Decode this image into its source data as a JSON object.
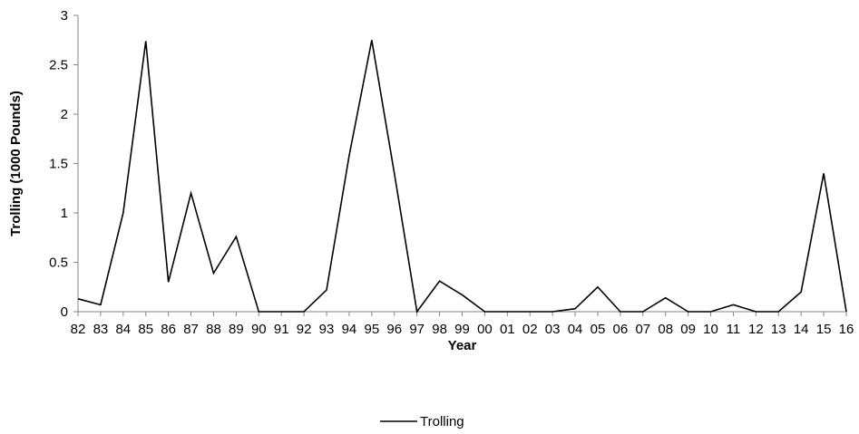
{
  "chart_data": {
    "type": "line",
    "title": "",
    "xlabel": "Year",
    "ylabel": "Trolling (1000 Pounds)",
    "ylim": [
      0,
      3
    ],
    "yticks": [
      "0",
      "0.5",
      "1",
      "1.5",
      "2",
      "2.5",
      "3"
    ],
    "grid": false,
    "legend": "bottom",
    "categories": [
      "82",
      "83",
      "84",
      "85",
      "86",
      "87",
      "88",
      "89",
      "90",
      "91",
      "92",
      "93",
      "94",
      "95",
      "96",
      "97",
      "98",
      "99",
      "00",
      "01",
      "02",
      "03",
      "04",
      "05",
      "06",
      "07",
      "08",
      "09",
      "10",
      "11",
      "12",
      "13",
      "14",
      "15",
      "16"
    ],
    "series": [
      {
        "name": "Trolling",
        "color": "#000000",
        "values": [
          0.13,
          0.07,
          1.0,
          2.74,
          0.3,
          1.2,
          0.39,
          0.76,
          0.0,
          0.0,
          0.0,
          0.22,
          1.58,
          2.75,
          1.4,
          0.0,
          0.31,
          0.17,
          0.0,
          0.0,
          0.0,
          0.0,
          0.03,
          0.25,
          0.0,
          0.0,
          0.14,
          0.0,
          0.0,
          0.07,
          0.0,
          0.0,
          0.2,
          1.4,
          0.0
        ]
      }
    ]
  }
}
